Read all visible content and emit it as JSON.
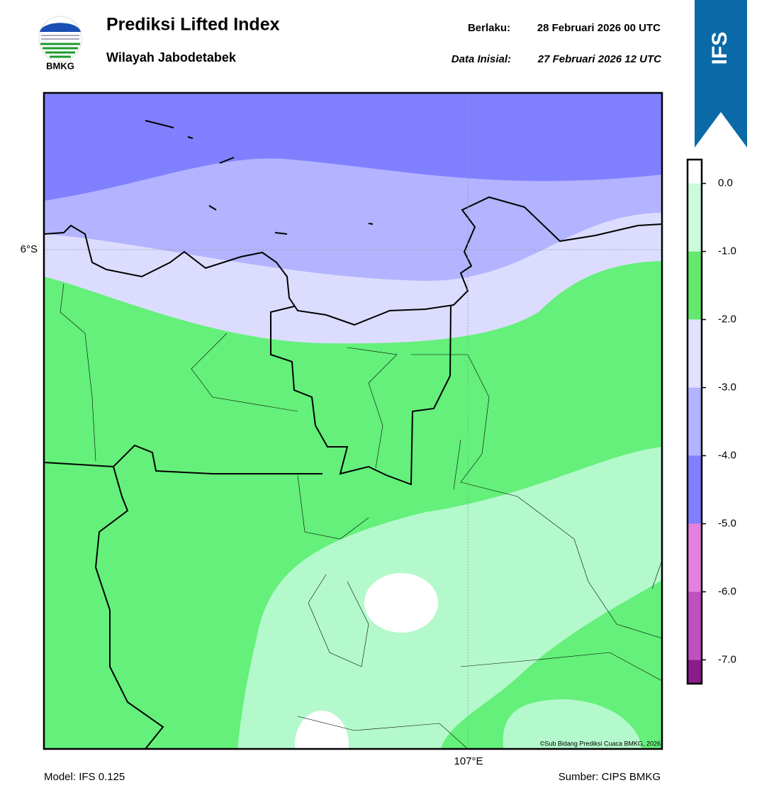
{
  "header": {
    "logo_text": "BMKG",
    "title": "Prediksi Lifted Index",
    "subtitle": "Wilayah Jabodetabek",
    "valid_label": "Berlaku:",
    "valid_time": "28 Februari 2026 00 UTC",
    "init_label": "Data Inisial:",
    "init_time": "27 Februari 2026 12 UTC",
    "model_tag": "IFS"
  },
  "map": {
    "lat_label": "6°S",
    "lon_label": "107°E",
    "credit": "©Sub Bidang Prediksi Cuaca BMKG, 2026"
  },
  "colorbar": {
    "range": [
      -7.35,
      0.35
    ],
    "ticks": [
      {
        "value": 0,
        "label": "0.0"
      },
      {
        "value": -1,
        "label": "-1.0"
      },
      {
        "value": -2,
        "label": "-2.0"
      },
      {
        "value": -3,
        "label": "-3.0"
      },
      {
        "value": -4,
        "label": "-4.0"
      },
      {
        "value": -5,
        "label": "-5.0"
      },
      {
        "value": -6,
        "label": "-6.0"
      },
      {
        "value": -7,
        "label": "-7.0"
      }
    ],
    "colors": [
      "#ffffff",
      "#ccfadb",
      "#64e86e",
      "#e0e0ff",
      "#b3b3ff",
      "#8080ff",
      "#e680e0",
      "#c050c0",
      "#8b1c8b"
    ]
  },
  "footer": {
    "model": "Model: IFS 0.125",
    "source": "Sumber: CIPS BMKG"
  }
}
